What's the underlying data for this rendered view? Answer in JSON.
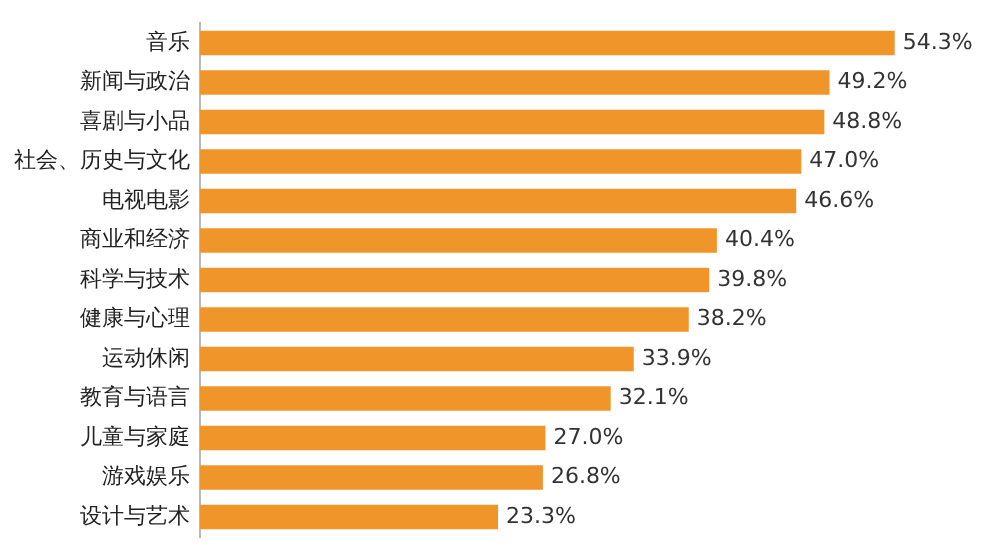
{
  "chart_data": {
    "type": "bar",
    "orientation": "horizontal",
    "categories": [
      "音乐",
      "新闻与政治",
      "喜剧与小品",
      "社会、历史与文化",
      "电视电影",
      "商业和经济",
      "科学与技术",
      "健康与心理",
      "运动休闲",
      "教育与语言",
      "儿童与家庭",
      "游戏娱乐",
      "设计与艺术"
    ],
    "values": [
      54.3,
      49.2,
      48.8,
      47.0,
      46.6,
      40.4,
      39.8,
      38.2,
      33.9,
      32.1,
      27.0,
      26.8,
      23.3
    ],
    "value_labels": [
      "54.3%",
      "49.2%",
      "48.8%",
      "47.0%",
      "46.6%",
      "40.4%",
      "39.8%",
      "38.2%",
      "33.9%",
      "32.1%",
      "27.0%",
      "26.8%",
      "23.3%"
    ],
    "color": "#f0952a"
  }
}
